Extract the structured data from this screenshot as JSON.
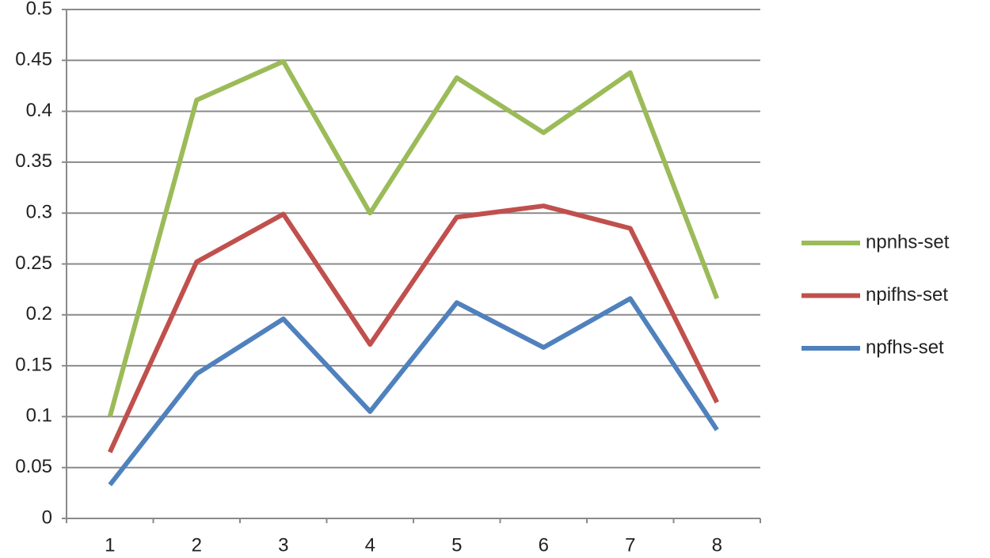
{
  "chart_data": {
    "type": "line",
    "categories": [
      "1",
      "2",
      "3",
      "4",
      "5",
      "6",
      "7",
      "8"
    ],
    "series": [
      {
        "name": "npnhs-set",
        "color": "#9bbb59",
        "values": [
          0.1,
          0.411,
          0.449,
          0.3,
          0.433,
          0.379,
          0.438,
          0.216
        ]
      },
      {
        "name": "npifhs-set",
        "color": "#c0504d",
        "values": [
          0.065,
          0.252,
          0.299,
          0.171,
          0.296,
          0.307,
          0.285,
          0.114
        ]
      },
      {
        "name": "npfhs-set",
        "color": "#4f81bd",
        "values": [
          0.033,
          0.142,
          0.196,
          0.105,
          0.212,
          0.168,
          0.216,
          0.087
        ]
      }
    ],
    "ylim": [
      0,
      0.5
    ],
    "yticks": [
      0,
      0.05,
      0.1,
      0.15,
      0.2,
      0.25,
      0.3,
      0.35,
      0.4,
      0.45,
      0.5
    ],
    "grid": true,
    "legend": "right"
  }
}
